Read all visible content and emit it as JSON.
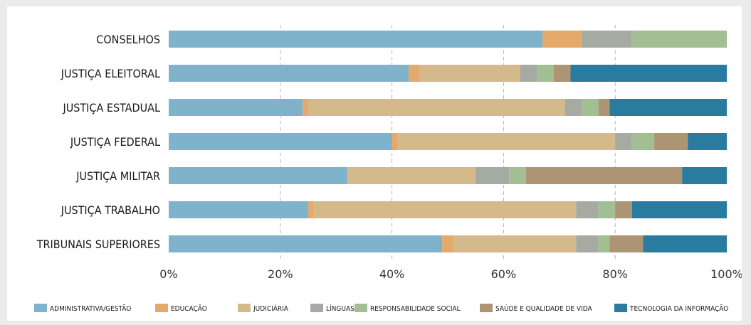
{
  "chart_data": {
    "type": "bar",
    "orientation": "horizontal",
    "stacked": true,
    "categories": [
      "CONSELHOS",
      "JUSTIÇA ELEITORAL",
      "JUSTIÇA ESTADUAL",
      "JUSTIÇA FEDERAL",
      "JUSTIÇA MILITAR",
      "JUSTIÇA TRABALHO",
      "TRIBUNAIS SUPERIORES"
    ],
    "series": [
      {
        "name": "ADMINISTRATIVA/GESTÃO",
        "color": "#7fb2cb",
        "values": [
          67,
          43,
          24,
          40,
          32,
          25,
          49
        ]
      },
      {
        "name": "EDUCAÇÃO",
        "color": "#e5a96a",
        "values": [
          7,
          2,
          1,
          1,
          0,
          1,
          2
        ]
      },
      {
        "name": "JUDICIÁRIA",
        "color": "#d4b98a",
        "values": [
          0,
          18,
          46,
          39,
          23,
          47,
          22
        ]
      },
      {
        "name": "LÍNGUAS",
        "color": "#a5aaa3",
        "values": [
          9,
          3,
          3,
          3,
          6,
          4,
          4
        ]
      },
      {
        "name": "RESPONSABILIDADE SOCIAL",
        "color": "#a2be93",
        "values": [
          17,
          3,
          3,
          4,
          3,
          3,
          2
        ]
      },
      {
        "name": "SAÚDE E QUALIDADE DE VIDA",
        "color": "#ad9474",
        "values": [
          0,
          3,
          2,
          6,
          28,
          3,
          6
        ]
      },
      {
        "name": "TECNOLOGIA DA INFORMAÇÃO",
        "color": "#2a7ba0",
        "values": [
          0,
          28,
          21,
          7,
          8,
          17,
          15
        ]
      }
    ],
    "xlim": [
      0,
      100
    ],
    "x_ticks": [
      "0%",
      "20%",
      "40%",
      "60%",
      "80%",
      "100%"
    ],
    "grid": "vertical dashed",
    "legend_position": "bottom",
    "title": "",
    "xlabel": "",
    "ylabel": ""
  }
}
